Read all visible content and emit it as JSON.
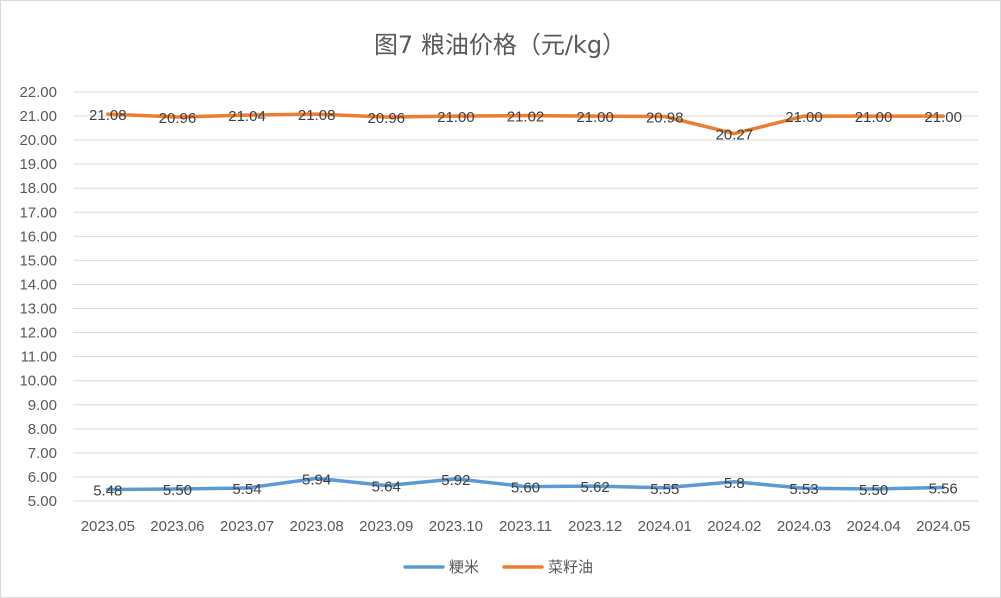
{
  "chart_data": {
    "type": "line",
    "title": "图7  粮油价格（元/kg）",
    "xlabel": "",
    "ylabel": "",
    "ylim": [
      5,
      22
    ],
    "ytick_step": 1,
    "ytick_labels": [
      "5.00",
      "6.00",
      "7.00",
      "8.00",
      "9.00",
      "10.00",
      "11.00",
      "12.00",
      "13.00",
      "14.00",
      "15.00",
      "16.00",
      "17.00",
      "18.00",
      "19.00",
      "20.00",
      "21.00",
      "22.00"
    ],
    "grid": true,
    "legend": "bottom",
    "categories": [
      "2023.05",
      "2023.06",
      "2023.07",
      "2023.08",
      "2023.09",
      "2023.10",
      "2023.11",
      "2023.12",
      "2024.01",
      "2024.02",
      "2024.03",
      "2024.04",
      "2024.05"
    ],
    "series": [
      {
        "name": "粳米",
        "color": "#5b9bd5",
        "values": [
          5.48,
          5.5,
          5.54,
          5.94,
          5.64,
          5.92,
          5.6,
          5.62,
          5.55,
          5.8,
          5.53,
          5.5,
          5.56
        ],
        "labels": [
          "5.48",
          "5.50",
          "5.54",
          "5.94",
          "5.64",
          "5.92",
          "5.60",
          "5.62",
          "5.55",
          "5.8",
          "5.53",
          "5.50",
          "5.56"
        ]
      },
      {
        "name": "菜籽油",
        "color": "#ed7d31",
        "values": [
          21.08,
          20.96,
          21.04,
          21.08,
          20.96,
          21.0,
          21.02,
          21.0,
          20.98,
          20.27,
          21.0,
          21.0,
          21.0
        ],
        "labels": [
          "21.08",
          "20.96",
          "21.04",
          "21.08",
          "20.96",
          "21.00",
          "21.02",
          "21.00",
          "20.98",
          "20.27",
          "21.00",
          "21.00",
          "21.00"
        ]
      }
    ]
  }
}
